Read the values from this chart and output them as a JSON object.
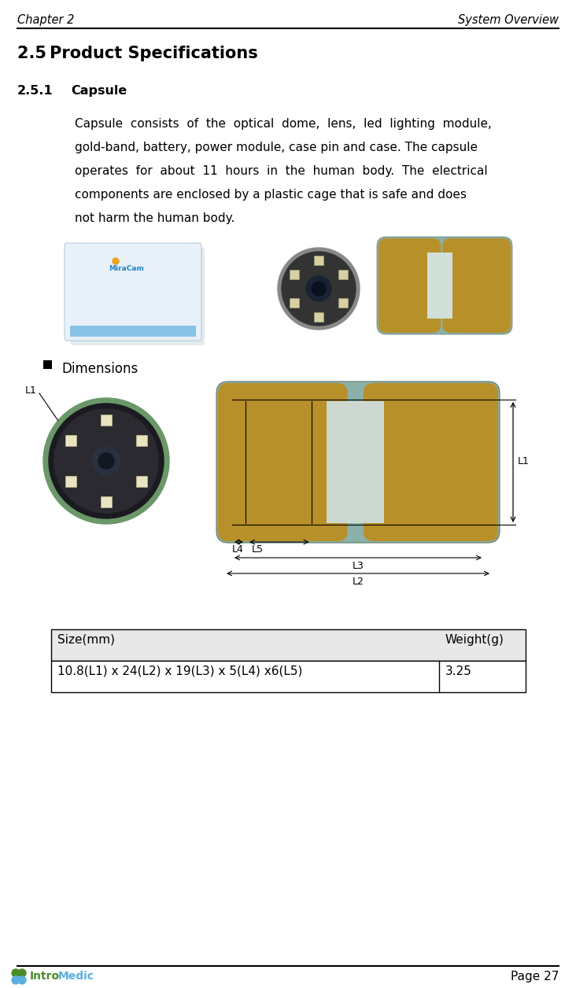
{
  "header_left": "Chapter 2",
  "header_right": "System Overview",
  "section_title": "2.5 Product Specifications",
  "subsection_num": "2.5.1",
  "subsection_name": "Capsule",
  "body_text": [
    "Capsule  consists  of  the  optical  dome,  lens,  led  lighting  module,",
    "gold-band, battery, power module, case pin and case. The capsule",
    "operates  for  about  11  hours  in  the  human  body.  The  electrical",
    "components are enclosed by a plastic cage that is safe and does",
    "not harm the human body."
  ],
  "bullet_label": "Dimensions",
  "table_headers": [
    "Size(mm)",
    "Weight(g)"
  ],
  "table_row": [
    "10.8(L1) x 24(L2) x 19(L3) x 5(L4) x6(L5)",
    "3.25"
  ],
  "footer_right_text": "Page 27",
  "logo_green": "#4a8c2a",
  "logo_blue": "#5bb0e0",
  "bg_color": "#ffffff",
  "text_color": "#000000",
  "table_header_bg": "#e8e8e8",
  "gold_color": "#b8902a",
  "teal_color": "#8ab0a8",
  "white_strip": "#d8e8e0",
  "capsule_border": "#7a9070"
}
